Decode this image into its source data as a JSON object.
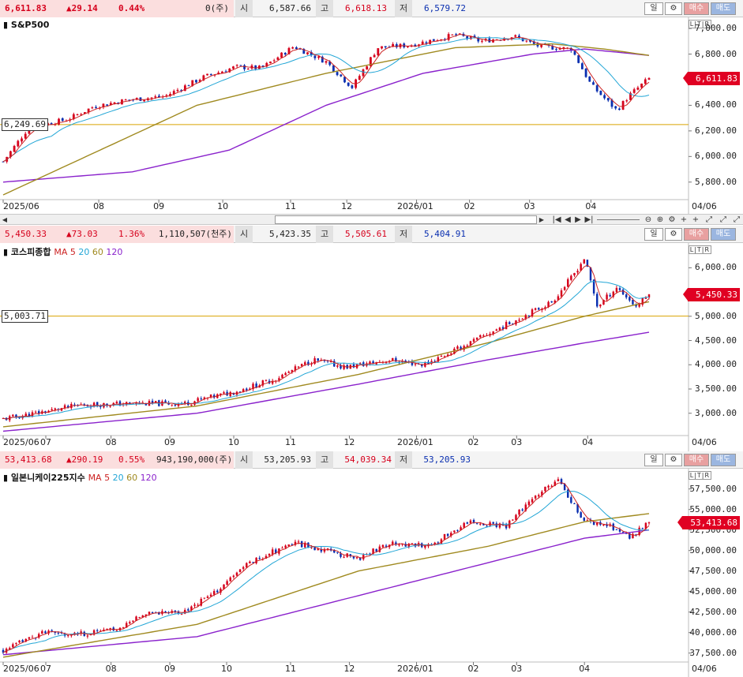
{
  "colors": {
    "up": "#d6001c",
    "down": "#0a2fb0",
    "ma5": "#cc2222",
    "ma20": "#22a6d6",
    "ma60": "#a08a20",
    "ma120": "#8a22cc",
    "ref": "#d9a300"
  },
  "buttons": {
    "day": "일",
    "gear": "⚙",
    "buy": "매수",
    "sell": "매도"
  },
  "scroll": {
    "first": "|◀",
    "prev": "◀",
    "next": "▶",
    "last": "▶|",
    "left": "◀",
    "right": "▶",
    "zoom_out": "⊖",
    "zoom_in": "⊕",
    "settings": "⚙",
    "add": "+",
    "fit": "⤢"
  },
  "panels": [
    {
      "header": {
        "price": "6,611.83",
        "change": "▲29.14",
        "pct": "0.44%",
        "volume": "0(주)",
        "open_label": "시",
        "open": "6,587.66",
        "high_label": "고",
        "high": "6,618.13",
        "low_label": "저",
        "low": "6,579.72"
      },
      "title": "S&P500",
      "ma_legend": [],
      "ltr": "L|T|R",
      "current_label": "6,611.83",
      "ref_label": "6,249.69",
      "x_labels": [
        "2025/06",
        "08",
        "09",
        "10",
        "11",
        "12",
        "2026/01",
        "02",
        "03",
        "04",
        "04/06"
      ],
      "y_labels": [
        "7,000.00",
        "6,800.00",
        "6,600.00",
        "6,400.00",
        "6,200.00",
        "6,000.00",
        "5,800.00"
      ],
      "chart_data": {
        "type": "candlestick",
        "ylim": [
          5700,
          7050
        ],
        "ref": 6249.69,
        "last": 6611.83,
        "anchors": [
          [
            0,
            5960
          ],
          [
            0.04,
            6230
          ],
          [
            0.1,
            6290
          ],
          [
            0.14,
            6390
          ],
          [
            0.19,
            6440
          ],
          [
            0.25,
            6470
          ],
          [
            0.31,
            6620
          ],
          [
            0.36,
            6700
          ],
          [
            0.4,
            6690
          ],
          [
            0.45,
            6860
          ],
          [
            0.5,
            6740
          ],
          [
            0.54,
            6540
          ],
          [
            0.58,
            6850
          ],
          [
            0.63,
            6870
          ],
          [
            0.7,
            6950
          ],
          [
            0.74,
            6900
          ],
          [
            0.79,
            6940
          ],
          [
            0.83,
            6860
          ],
          [
            0.88,
            6840
          ],
          [
            0.91,
            6560
          ],
          [
            0.95,
            6360
          ],
          [
            0.97,
            6480
          ],
          [
            1.0,
            6611
          ]
        ],
        "ma120": [
          [
            0,
            5800
          ],
          [
            0.2,
            5880
          ],
          [
            0.35,
            6050
          ],
          [
            0.5,
            6400
          ],
          [
            0.65,
            6650
          ],
          [
            0.82,
            6800
          ],
          [
            0.9,
            6840
          ],
          [
            1.0,
            6790
          ]
        ],
        "ma60": [
          [
            0,
            5700
          ],
          [
            0.12,
            5980
          ],
          [
            0.3,
            6400
          ],
          [
            0.5,
            6650
          ],
          [
            0.7,
            6850
          ],
          [
            0.85,
            6880
          ],
          [
            0.93,
            6840
          ],
          [
            1.0,
            6790
          ]
        ],
        "seed": 7
      }
    },
    {
      "header": {
        "price": "5,450.33",
        "change": "▲73.03",
        "pct": "1.36%",
        "volume": "1,110,507(천주)",
        "open_label": "시",
        "open": "5,423.35",
        "high_label": "고",
        "high": "5,505.61",
        "low_label": "저",
        "low": "5,404.91"
      },
      "title": "코스피종합",
      "ma_legend": [
        "MA",
        "5",
        "20",
        "60",
        "120"
      ],
      "ltr": "L|T|R",
      "current_label": "5,450.33",
      "ref_label": "5,003.71",
      "x_labels": [
        "2025/06",
        "07",
        "08",
        "09",
        "10",
        "11",
        "12",
        "2026/01",
        "02",
        "03",
        "04",
        "04/06"
      ],
      "y_labels": [
        "6,000.00",
        "5,500.00",
        "5,000.00",
        "4,500.00",
        "4,000.00",
        "3,500.00",
        "3,000.00"
      ],
      "chart_data": {
        "type": "candlestick",
        "ylim": [
          2540,
          6380
        ],
        "ref": 5003.71,
        "last": 5450.33,
        "anchors": [
          [
            0,
            2880
          ],
          [
            0.05,
            3000
          ],
          [
            0.12,
            3170
          ],
          [
            0.2,
            3200
          ],
          [
            0.28,
            3200
          ],
          [
            0.36,
            3450
          ],
          [
            0.42,
            3700
          ],
          [
            0.48,
            4100
          ],
          [
            0.53,
            3950
          ],
          [
            0.6,
            4100
          ],
          [
            0.65,
            4000
          ],
          [
            0.7,
            4300
          ],
          [
            0.76,
            4700
          ],
          [
            0.82,
            5100
          ],
          [
            0.85,
            5300
          ],
          [
            0.88,
            5800
          ],
          [
            0.9,
            6200
          ],
          [
            0.92,
            5200
          ],
          [
            0.95,
            5600
          ],
          [
            0.98,
            5200
          ],
          [
            1.0,
            5450
          ]
        ],
        "ma120": [
          [
            0,
            2630
          ],
          [
            0.3,
            3000
          ],
          [
            0.55,
            3600
          ],
          [
            0.75,
            4100
          ],
          [
            0.9,
            4450
          ],
          [
            1.0,
            4670
          ]
        ],
        "ma60": [
          [
            0,
            2720
          ],
          [
            0.3,
            3150
          ],
          [
            0.55,
            3800
          ],
          [
            0.75,
            4450
          ],
          [
            0.9,
            5000
          ],
          [
            1.0,
            5300
          ]
        ],
        "seed": 11
      }
    },
    {
      "header": {
        "price": "53,413.68",
        "change": "▲290.19",
        "pct": "0.55%",
        "volume": "943,190,000(주)",
        "open_label": "시",
        "open": "53,205.93",
        "high_label": "고",
        "high": "54,039.34",
        "low_label": "저",
        "low": "53,205.93"
      },
      "title": "일본니케이225지수",
      "ma_legend": [
        "MA",
        "5",
        "20",
        "60",
        "120"
      ],
      "ltr": "L|T|R",
      "current_label": "53,413.68",
      "ref_label": "",
      "x_labels": [
        "2025/06",
        "07",
        "08",
        "09",
        "10",
        "11",
        "12",
        "2026/01",
        "02",
        "03",
        "04",
        "04/06"
      ],
      "y_labels": [
        "57,500.00",
        "55,000.00",
        "52,500.00",
        "50,000.00",
        "47,500.00",
        "45,000.00",
        "42,500.00",
        "40,000.00",
        "37,500.00"
      ],
      "chart_data": {
        "type": "candlestick",
        "ylim": [
          36700,
          59200
        ],
        "ref": null,
        "last": 53413.68,
        "anchors": [
          [
            0,
            37800
          ],
          [
            0.06,
            40000
          ],
          [
            0.12,
            39800
          ],
          [
            0.18,
            40500
          ],
          [
            0.22,
            42500
          ],
          [
            0.28,
            42500
          ],
          [
            0.33,
            45000
          ],
          [
            0.38,
            48500
          ],
          [
            0.45,
            51000
          ],
          [
            0.5,
            50000
          ],
          [
            0.55,
            49000
          ],
          [
            0.6,
            51000
          ],
          [
            0.66,
            50500
          ],
          [
            0.72,
            53500
          ],
          [
            0.78,
            53000
          ],
          [
            0.82,
            56500
          ],
          [
            0.86,
            58500
          ],
          [
            0.88,
            56000
          ],
          [
            0.9,
            53500
          ],
          [
            0.94,
            53000
          ],
          [
            0.97,
            51500
          ],
          [
            1.0,
            53413
          ]
        ],
        "ma120": [
          [
            0,
            37300
          ],
          [
            0.3,
            39500
          ],
          [
            0.55,
            44500
          ],
          [
            0.75,
            48500
          ],
          [
            0.9,
            51500
          ],
          [
            1.0,
            52500
          ]
        ],
        "ma60": [
          [
            0,
            37000
          ],
          [
            0.3,
            41000
          ],
          [
            0.55,
            47500
          ],
          [
            0.75,
            50500
          ],
          [
            0.9,
            53500
          ],
          [
            1.0,
            54500
          ]
        ],
        "seed": 23
      }
    }
  ]
}
